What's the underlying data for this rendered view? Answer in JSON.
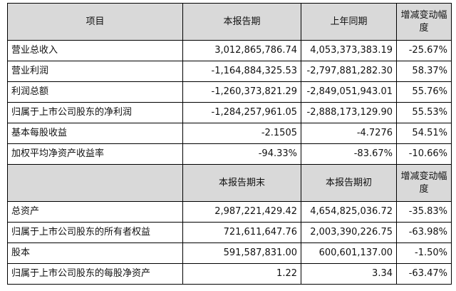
{
  "unit_text": "",
  "headers1": {
    "item": "项目",
    "current": "本报告期",
    "prior": "上年同期",
    "change": "增减变动幅度"
  },
  "rows1": [
    {
      "label": "营业总收入",
      "current": "3,012,865,786.74",
      "prior": "4,053,373,383.19",
      "change": "-25.67%"
    },
    {
      "label": "营业利润",
      "current": "-1,164,884,325.53",
      "prior": "-2,797,881,282.30",
      "change": "58.37%"
    },
    {
      "label": "利润总额",
      "current": "-1,260,373,821.29",
      "prior": "-2,849,051,943.01",
      "change": "55.76%"
    },
    {
      "label": "归属于上市公司股东的净利润",
      "current": "-1,284,257,961.05",
      "prior": "-2,888,173,129.90",
      "change": "55.53%"
    },
    {
      "label": "基本每股收益",
      "current": "-2.1505",
      "prior": "-4.7276",
      "change": "54.51%"
    },
    {
      "label": "加权平均净资产收益率",
      "current": "-94.33%",
      "prior": "-83.67%",
      "change": "-10.66%"
    }
  ],
  "headers2": {
    "item": "",
    "current": "本报告期末",
    "prior": "本报告期初",
    "change": "增减变动幅度"
  },
  "rows2": [
    {
      "label": "总资产",
      "current": "2,987,221,429.42",
      "prior": "4,654,825,036.72",
      "change": "-35.83%"
    },
    {
      "label": "归属于上市公司股东的所有者权益",
      "current": "721,611,647.76",
      "prior": "2,003,390,226.75",
      "change": "-63.98%"
    },
    {
      "label": "股本",
      "current": "591,587,831.00",
      "prior": "600,601,137.00",
      "change": "-1.50%"
    },
    {
      "label": "归属于上市公司股东的每股净资产",
      "current": "1.22",
      "prior": "3.34",
      "change": "-63.47%"
    }
  ]
}
